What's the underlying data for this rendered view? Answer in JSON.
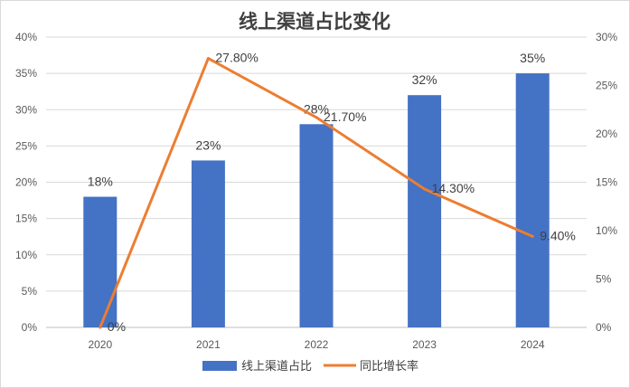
{
  "chart_data": {
    "type": "bar",
    "title": "线上渠道占比变化",
    "categories": [
      "2020",
      "2021",
      "2022",
      "2023",
      "2024"
    ],
    "series": [
      {
        "name": "线上渠道占比",
        "type": "bar",
        "axis": "left",
        "values": [
          18,
          23,
          28,
          32,
          35
        ],
        "labels": [
          "18%",
          "23%",
          "28%",
          "32%",
          "35%"
        ],
        "color": "#4472C4"
      },
      {
        "name": "同比增长率",
        "type": "line",
        "axis": "right",
        "values": [
          0,
          27.8,
          21.7,
          14.3,
          9.4
        ],
        "labels": [
          "0%",
          "27.80%",
          "21.70%",
          "14.30%",
          "9.40%"
        ],
        "color": "#ED7D31"
      }
    ],
    "y_left": {
      "min": 0,
      "max": 40,
      "step": 5,
      "tick_labels": [
        "0%",
        "5%",
        "10%",
        "15%",
        "20%",
        "25%",
        "30%",
        "35%",
        "40%"
      ]
    },
    "y_right": {
      "min": 0,
      "max": 30,
      "step": 5,
      "tick_labels": [
        "0%",
        "5%",
        "10%",
        "15%",
        "20%",
        "25%",
        "30%"
      ]
    },
    "grid": true,
    "legend": "bottom"
  }
}
